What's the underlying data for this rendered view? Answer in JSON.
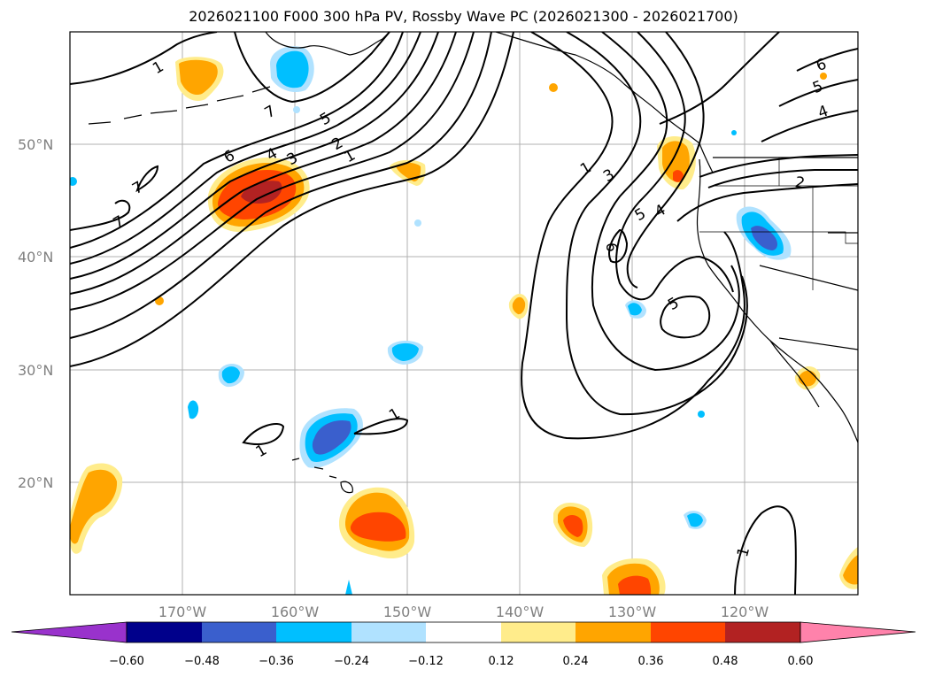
{
  "title": "2026021100 F000 300 hPa PV, Rossby Wave PC (2026021300 - 2026021700)",
  "lon_labels": [
    "170°W",
    "160°W",
    "150°W",
    "140°W",
    "130°W",
    "120°W"
  ],
  "lat_labels": [
    "50°N",
    "40°N",
    "30°N",
    "20°N"
  ],
  "colorbar": {
    "ticks": [
      "−0.60",
      "−0.48",
      "−0.36",
      "−0.24",
      "−0.12",
      "0.12",
      "0.24",
      "0.36",
      "0.48",
      "0.60"
    ],
    "colors": [
      "#9932CC",
      "#00008B",
      "#3A5FCD",
      "#00BFFF",
      "#B0E2FF",
      "#FFFFFF",
      "#FFEC8B",
      "#FFA500",
      "#FF4500",
      "#B22222",
      "#FF82AB"
    ]
  },
  "contour_labels": [
    "1",
    "7",
    "7",
    "5",
    "6",
    "4",
    "3",
    "2",
    "1",
    "7",
    "1",
    "3",
    "6",
    "5",
    "4",
    "5",
    "2",
    "6",
    "5",
    "4",
    "1",
    "1",
    "1"
  ],
  "chart_data": {
    "type": "map",
    "region": "North-East Pacific / western North America",
    "lon_range": [
      -180,
      -110
    ],
    "lat_range": [
      10,
      60
    ],
    "contour_field": "300 hPa potential vorticity (PVU)",
    "shaded_field": "Rossby Wave PC",
    "shade_levels": [
      -0.6,
      -0.48,
      -0.36,
      -0.24,
      -0.12,
      0.12,
      0.24,
      0.36,
      0.48,
      0.6
    ],
    "pv_contour_levels": [
      1,
      2,
      3,
      4,
      5,
      6,
      7
    ]
  }
}
